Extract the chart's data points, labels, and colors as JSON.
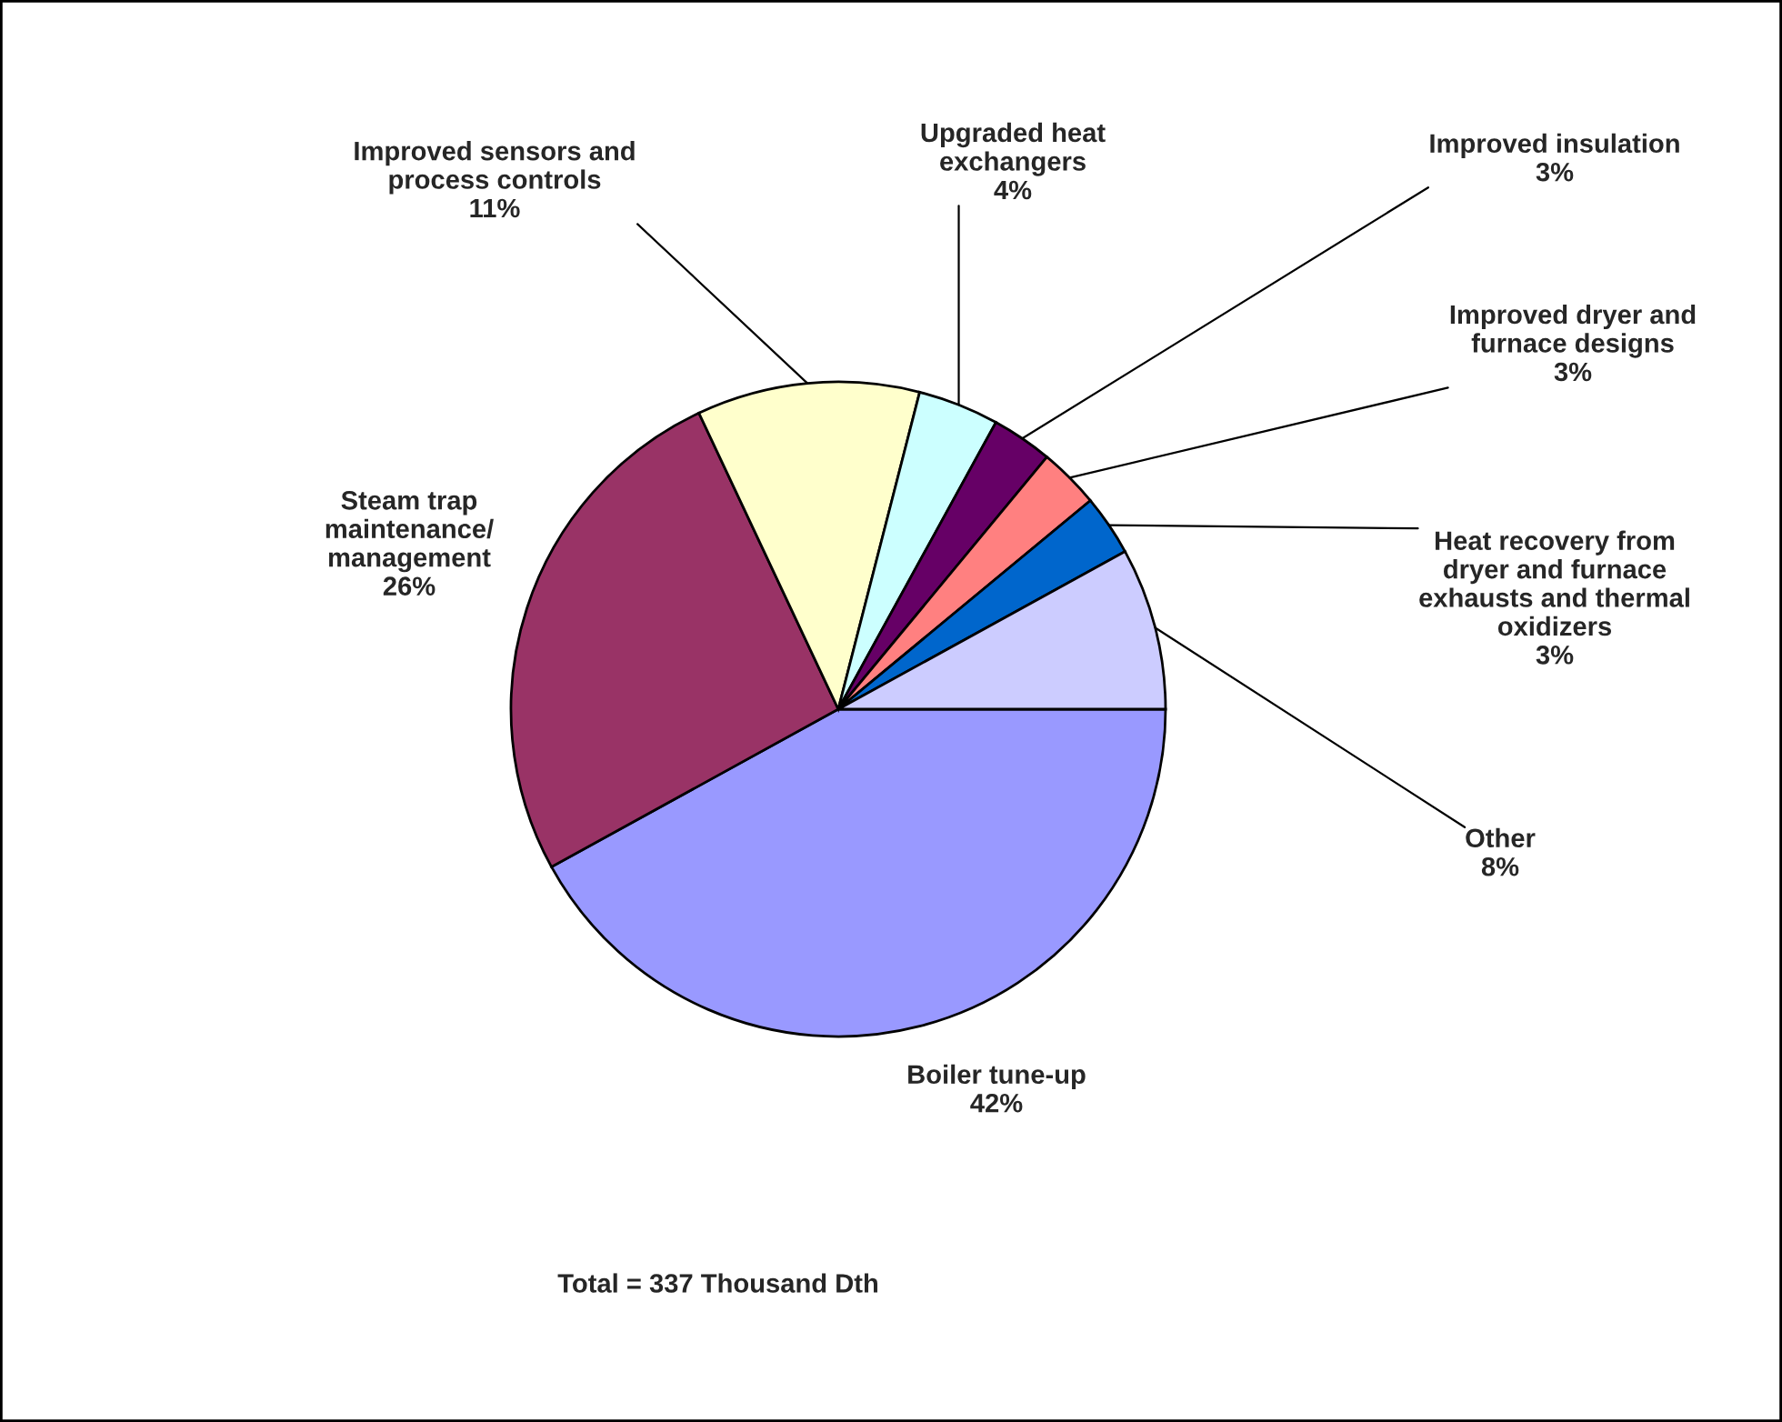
{
  "chart_data": {
    "type": "pie",
    "categories": [
      "Boiler tune-up",
      "Steam trap\nmaintenance/\nmanagement",
      "Improved sensors and\nprocess controls",
      "Upgraded heat\nexchangers",
      "Improved insulation",
      "Improved dryer and\nfurnace designs",
      "Heat recovery from\ndryer and furnace\nexhausts and thermal\noxidizers",
      "Other"
    ],
    "values": [
      42,
      26,
      11,
      4,
      3,
      3,
      3,
      8
    ],
    "value_labels": [
      "42%",
      "26%",
      "11%",
      "4%",
      "3%",
      "3%",
      "3%",
      "8%"
    ],
    "colors": [
      "#9999ff",
      "#993366",
      "#ffffcc",
      "#ccffff",
      "#660066",
      "#ff8080",
      "#0066cc",
      "#ccccff"
    ],
    "annotations": [
      "Total = 337 Thousand Dth"
    ],
    "legend": false
  }
}
